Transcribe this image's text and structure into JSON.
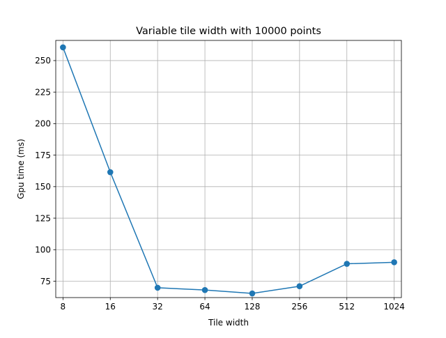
{
  "chart_data": {
    "type": "line",
    "title": "Variable tile width with 10000 points",
    "xlabel": "Tile width",
    "ylabel": "Gpu time (ms)",
    "x_scale": "log2",
    "x_ticks": [
      "8",
      "16",
      "32",
      "64",
      "128",
      "256",
      "512",
      "1024"
    ],
    "y_ticks": [
      "75",
      "100",
      "125",
      "150",
      "175",
      "200",
      "225",
      "250"
    ],
    "ylim": [
      62,
      266
    ],
    "grid": true,
    "series": [
      {
        "color": "#1f77b4",
        "marker": "circle",
        "x": [
          8,
          16,
          32,
          64,
          128,
          256,
          512,
          1024
        ],
        "y": [
          260.5,
          161.5,
          69.8,
          68.0,
          65.3,
          71.0,
          88.8,
          90.0
        ]
      }
    ]
  }
}
